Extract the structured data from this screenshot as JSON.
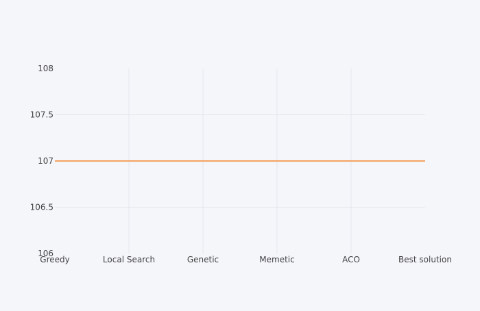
{
  "chart_data": {
    "type": "line",
    "categories": [
      "Greedy",
      "Local Search",
      "Genetic",
      "Memetic",
      "ACO",
      "Best solution"
    ],
    "series": [
      {
        "color": "#f4a261",
        "values": [
          107,
          107,
          107,
          107,
          107,
          107
        ]
      }
    ],
    "ylim": [
      106,
      108
    ],
    "yticks": [
      106,
      106.5,
      107,
      107.5,
      108
    ],
    "ytick_labels": [
      "106",
      "106.5",
      "107",
      "107.5",
      "108"
    ],
    "grid": {
      "x": true,
      "y": true,
      "color": "#e4e6ee"
    },
    "legend": "none"
  }
}
